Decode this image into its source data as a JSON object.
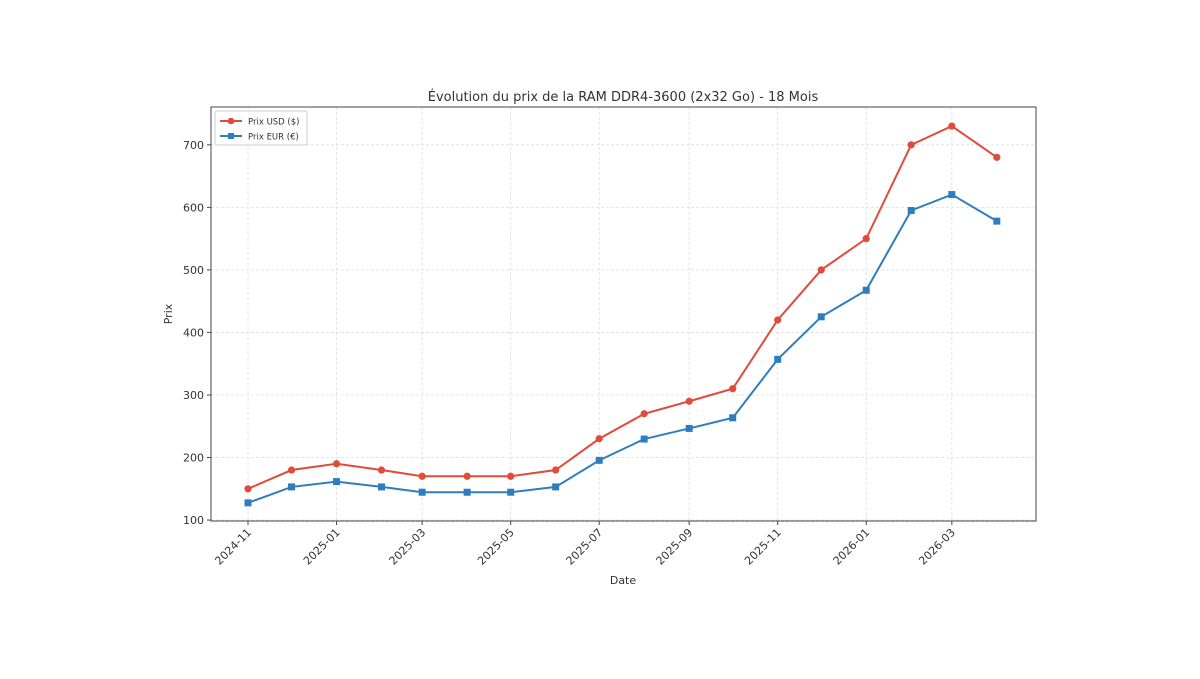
{
  "chart_data": {
    "type": "line",
    "title": "Évolution du prix de la RAM DDR4-3600 (2x32 Go) - 18 Mois",
    "xlabel": "Date",
    "ylabel": "Prix",
    "x": [
      "2024-11-01",
      "2024-12-01",
      "2025-01-01",
      "2025-02-01",
      "2025-03-01",
      "2025-04-01",
      "2025-05-01",
      "2025-06-01",
      "2025-07-01",
      "2025-08-01",
      "2025-09-01",
      "2025-10-01",
      "2025-11-01",
      "2025-12-01",
      "2026-01-01",
      "2026-02-01",
      "2026-03-01",
      "2026-04-01"
    ],
    "xticks": [
      "2024-11",
      "2025-01",
      "2025-03",
      "2025-05",
      "2025-07",
      "2025-09",
      "2025-11",
      "2026-01",
      "2026-03"
    ],
    "yticks": [
      100,
      200,
      300,
      400,
      500,
      600,
      700
    ],
    "ylim": [
      98.5,
      760.5
    ],
    "xlim_days_from_first": [
      -25.5,
      543
    ],
    "grid": true,
    "legend_position": "top-left",
    "series": [
      {
        "name": "Prix USD ($)",
        "color": "#e04b3a",
        "marker": "circle",
        "values": [
          150,
          180,
          190,
          180,
          170,
          170,
          170,
          180,
          230,
          270,
          290,
          310,
          420,
          500,
          550,
          700,
          730,
          680
        ]
      },
      {
        "name": "Prix EUR (€)",
        "color": "#2e7ebf",
        "marker": "square",
        "values": [
          127.5,
          153,
          161.5,
          153,
          144.5,
          144.5,
          144.5,
          153,
          195.5,
          229.5,
          246.5,
          263.5,
          357,
          425,
          467.5,
          595,
          620.5,
          578
        ]
      }
    ]
  }
}
